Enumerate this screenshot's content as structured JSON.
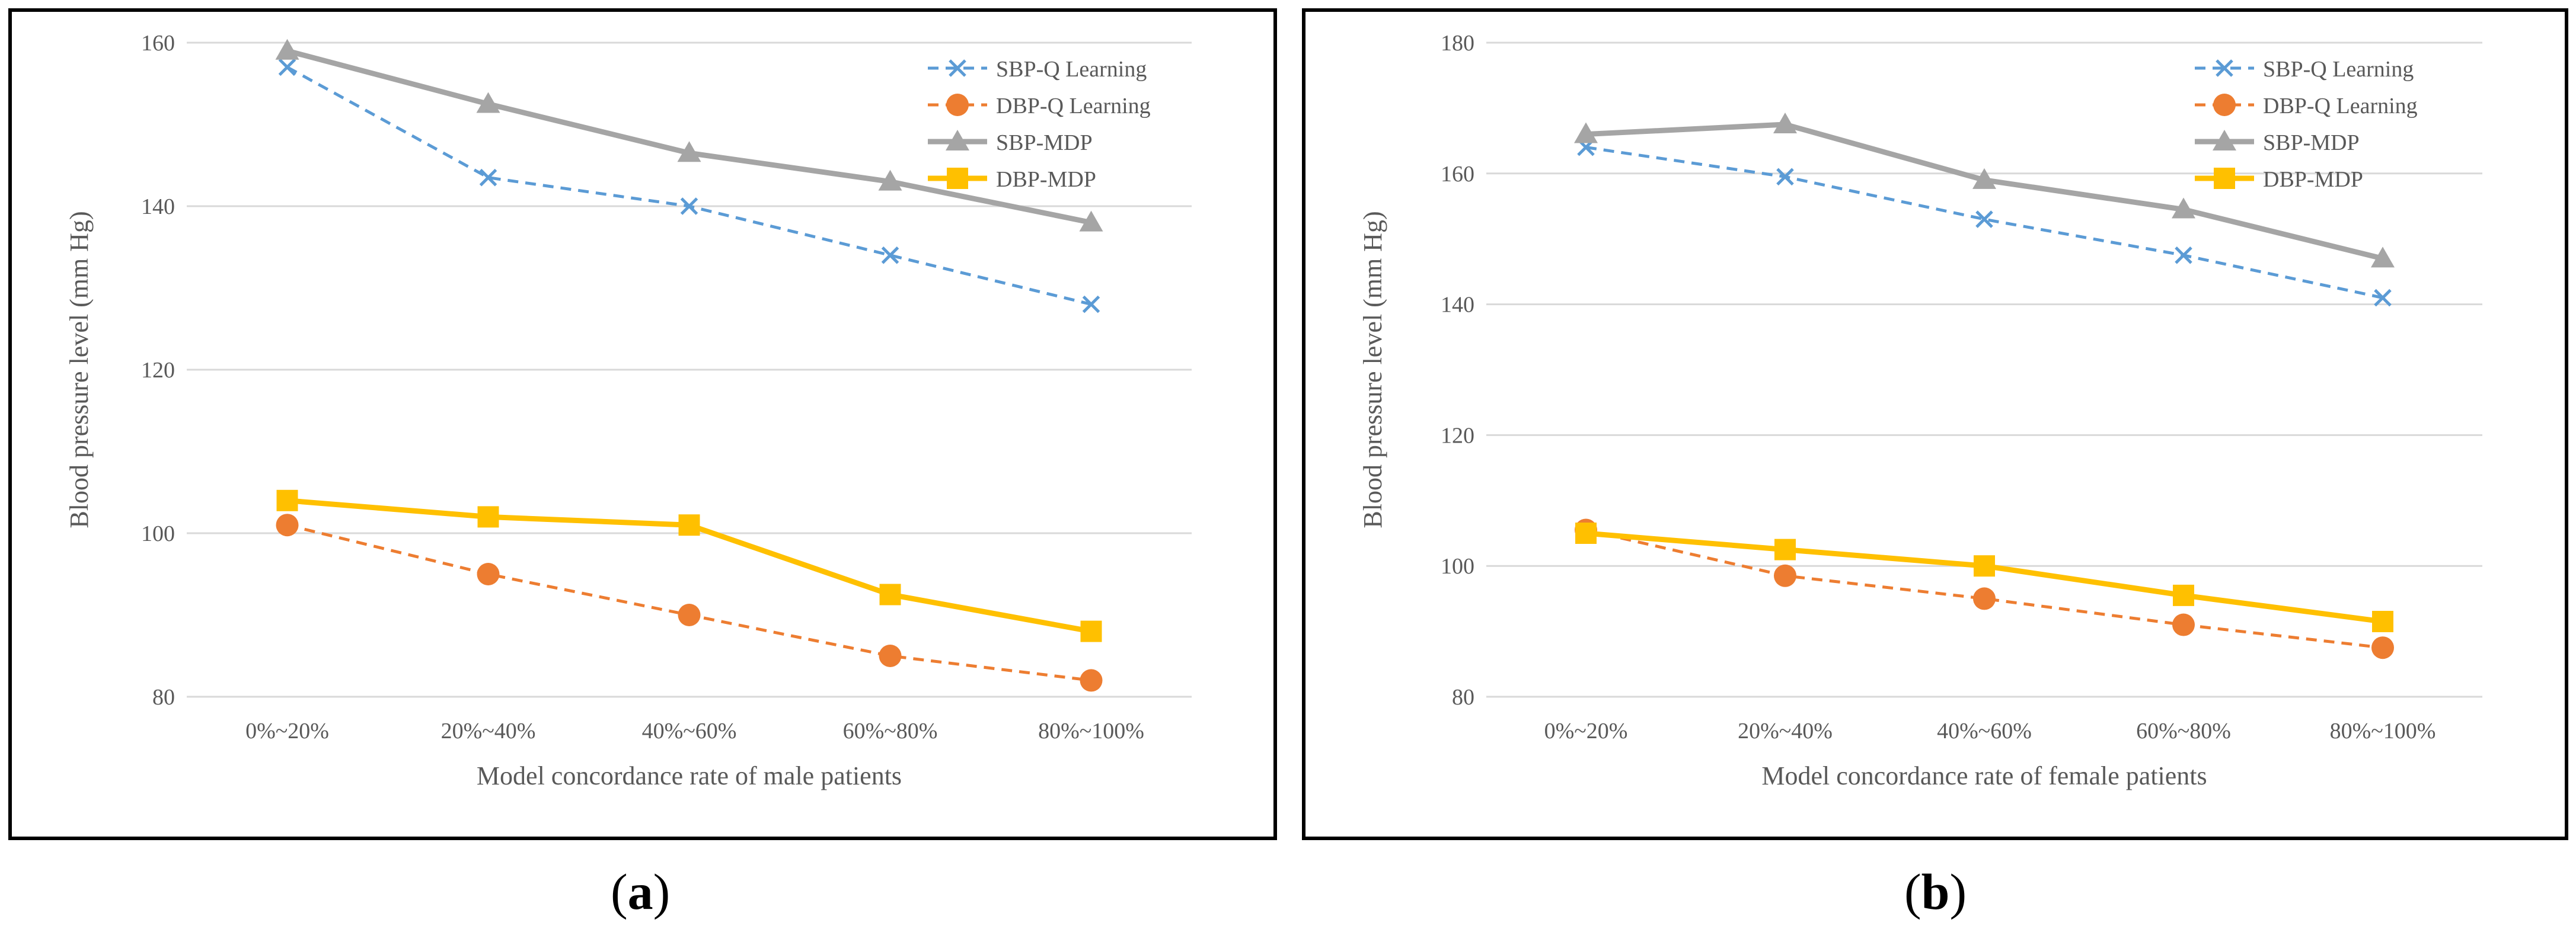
{
  "chart_data": [
    {
      "type": "line",
      "panel_label": "a",
      "title": "",
      "xlabel": "Model concordance rate of male patients",
      "ylabel": "Blood pressure level (mm Hg)",
      "categories": [
        "0%~20%",
        "20%~40%",
        "40%~60%",
        "60%~80%",
        "80%~100%"
      ],
      "ylim": [
        80,
        160
      ],
      "yticks": [
        80,
        100,
        120,
        140,
        160
      ],
      "grid": true,
      "legend": "top-right",
      "series": [
        {
          "name": "SBP-Q Learning",
          "values": [
            157,
            143.5,
            140,
            134,
            128
          ],
          "color": "#5b9bd5",
          "style": "dashed",
          "marker": "x"
        },
        {
          "name": "DBP-Q Learning",
          "values": [
            101,
            95,
            90,
            85,
            82
          ],
          "color": "#ed7d31",
          "style": "dashed",
          "marker": "circle"
        },
        {
          "name": "SBP-MDP",
          "values": [
            159,
            152.5,
            146.5,
            143,
            138
          ],
          "color": "#a5a5a5",
          "style": "solid",
          "marker": "triangle"
        },
        {
          "name": "DBP-MDP",
          "values": [
            104,
            102,
            101,
            92.5,
            88
          ],
          "color": "#ffc000",
          "style": "solid",
          "marker": "square"
        }
      ]
    },
    {
      "type": "line",
      "panel_label": "b",
      "title": "",
      "xlabel": "Model concordance rate of female patients",
      "ylabel": "Blood pressure level (mm Hg)",
      "categories": [
        "0%~20%",
        "20%~40%",
        "40%~60%",
        "60%~80%",
        "80%~100%"
      ],
      "ylim": [
        80,
        180
      ],
      "yticks": [
        80,
        100,
        120,
        140,
        160,
        180
      ],
      "grid": true,
      "legend": "top-right",
      "series": [
        {
          "name": "SBP-Q Learning",
          "values": [
            164,
            159.5,
            153,
            147.5,
            141
          ],
          "color": "#5b9bd5",
          "style": "dashed",
          "marker": "x"
        },
        {
          "name": "DBP-Q Learning",
          "values": [
            105.5,
            98.5,
            95,
            91,
            87.5
          ],
          "color": "#ed7d31",
          "style": "dashed",
          "marker": "circle"
        },
        {
          "name": "SBP-MDP",
          "values": [
            166,
            167.5,
            159,
            154.5,
            147
          ],
          "color": "#a5a5a5",
          "style": "solid",
          "marker": "triangle"
        },
        {
          "name": "DBP-MDP",
          "values": [
            105,
            102.5,
            100,
            95.5,
            91.5
          ],
          "color": "#ffc000",
          "style": "solid",
          "marker": "square"
        }
      ]
    }
  ]
}
